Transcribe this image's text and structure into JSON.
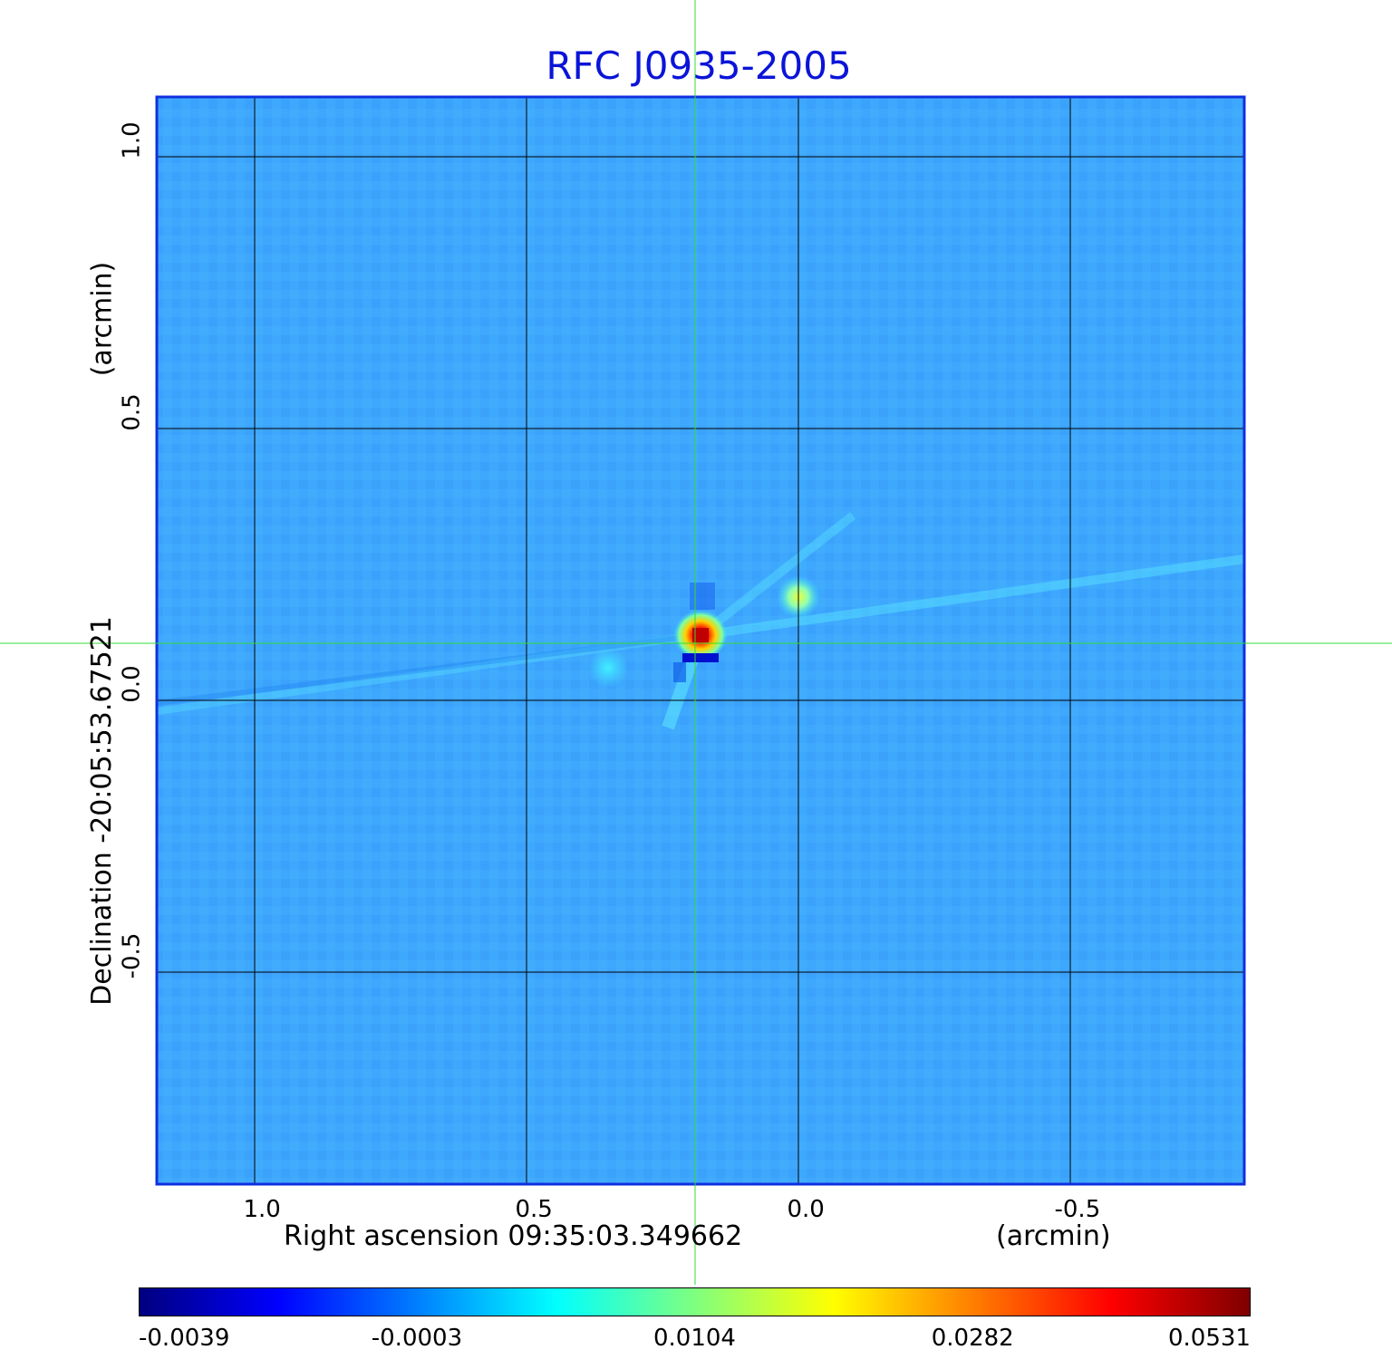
{
  "chart_data": {
    "type": "heatmap",
    "title": "RFC J0935-2005",
    "xlabel": "Right ascension  09:35:03.349662",
    "xunit": "(arcmin)",
    "ylabel": "Declination  -20:05:53.67521",
    "yunit": "(arcmin)",
    "xlim": [
      1.18,
      -0.82
    ],
    "ylim": [
      -0.89,
      1.11
    ],
    "x_ticks": [
      "1.0",
      "0.5",
      "0.0",
      "-0.5"
    ],
    "y_ticks": [
      "1.0",
      "0.5",
      "0.0",
      "-0.5"
    ],
    "grid": true,
    "crosshair": {
      "x": 0.19,
      "y": 0.105
    },
    "colorbar": {
      "colormap": "jet",
      "tick_labels": [
        "-0.0039",
        "-0.0003",
        "0.0104",
        "0.0282",
        "0.0531"
      ]
    },
    "features": [
      {
        "kind": "peak",
        "x": 0.18,
        "y": 0.12,
        "value": 0.0531
      },
      {
        "kind": "secondary",
        "x": 0.0,
        "y": 0.19,
        "value": 0.018
      },
      {
        "kind": "negative",
        "x": 0.18,
        "y": 0.08,
        "value": -0.0039
      }
    ]
  },
  "colors": {
    "title": "#0a14d8",
    "frame": "#1030e0",
    "background_map": "#3fa6ff",
    "crosshair": "#33dd33",
    "grid": "#000000"
  }
}
